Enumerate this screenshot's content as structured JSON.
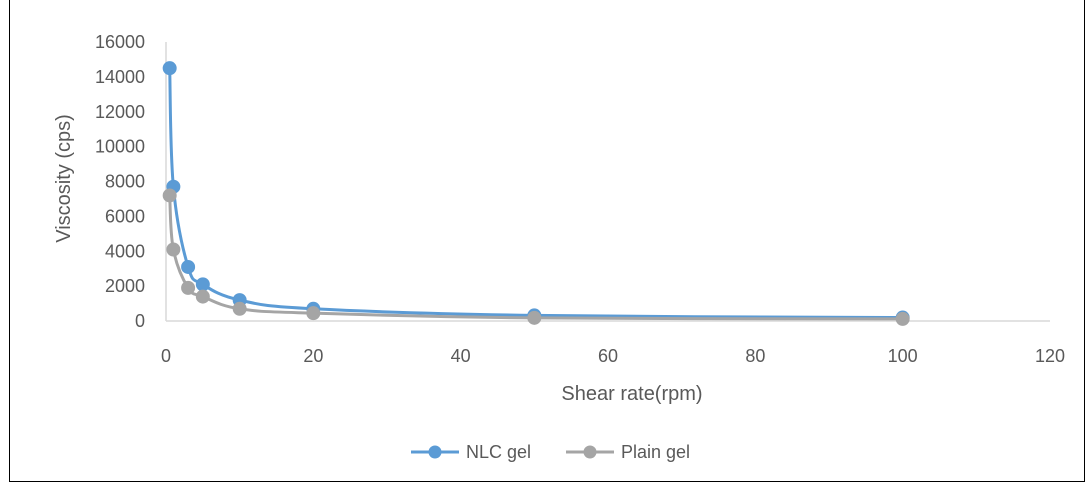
{
  "chart_data": {
    "type": "scatter",
    "title": "",
    "xlabel": "Shear rate(rpm)",
    "ylabel": "Viscosity (cps)",
    "xlim": [
      0,
      120
    ],
    "ylim": [
      0,
      16000
    ],
    "xticks": [
      "0",
      "20",
      "40",
      "60",
      "80",
      "100",
      "120"
    ],
    "yticks": [
      "0",
      "2000",
      "4000",
      "6000",
      "8000",
      "10000",
      "12000",
      "14000",
      "16000"
    ],
    "grid": false,
    "legend_position": "bottom",
    "smooth_lines": true,
    "series": [
      {
        "name": "NLC gel",
        "color": "#5B9BD5",
        "points": [
          {
            "x": 0.5,
            "y": 14500
          },
          {
            "x": 1,
            "y": 7700
          },
          {
            "x": 3,
            "y": 3100
          },
          {
            "x": 5,
            "y": 2100
          },
          {
            "x": 10,
            "y": 1200
          },
          {
            "x": 20,
            "y": 700
          },
          {
            "x": 50,
            "y": 320
          },
          {
            "x": 100,
            "y": 200
          }
        ]
      },
      {
        "name": "Plain gel",
        "color": "#A5A5A5",
        "points": [
          {
            "x": 0.5,
            "y": 7200
          },
          {
            "x": 1,
            "y": 4100
          },
          {
            "x": 3,
            "y": 1900
          },
          {
            "x": 5,
            "y": 1400
          },
          {
            "x": 10,
            "y": 700
          },
          {
            "x": 20,
            "y": 450
          },
          {
            "x": 50,
            "y": 180
          },
          {
            "x": 100,
            "y": 120
          }
        ]
      }
    ]
  }
}
